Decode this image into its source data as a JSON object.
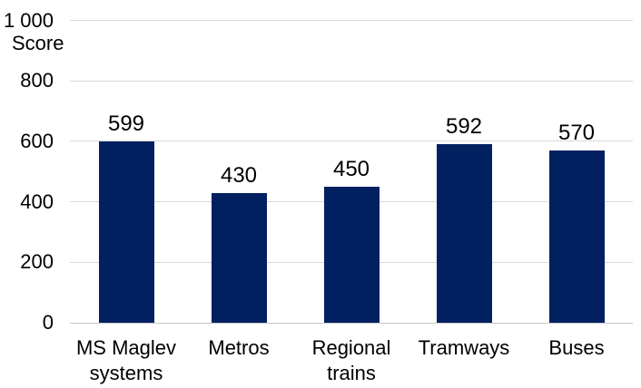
{
  "chart_data": {
    "type": "bar",
    "categories": [
      "MS Maglev systems",
      "Metros",
      "Regional trains",
      "Tramways",
      "Buses"
    ],
    "values": [
      599,
      430,
      450,
      592,
      570
    ],
    "data_labels": [
      "599",
      "430",
      "450",
      "592",
      "570"
    ],
    "title": "",
    "xlabel": "",
    "ylabel": "Score",
    "ylim": [
      0,
      1000
    ],
    "yticks": [
      0,
      200,
      400,
      600,
      800,
      1000
    ],
    "ytick_labels": [
      "0",
      "200",
      "400",
      "600",
      "800",
      "1 000"
    ],
    "grid": true,
    "legend": false,
    "colors": {
      "bar": "#002060",
      "gridline": "#D9D9D9",
      "axis_line": "#C6C6C6",
      "text": "#000000",
      "background": "#FFFFFF"
    }
  }
}
